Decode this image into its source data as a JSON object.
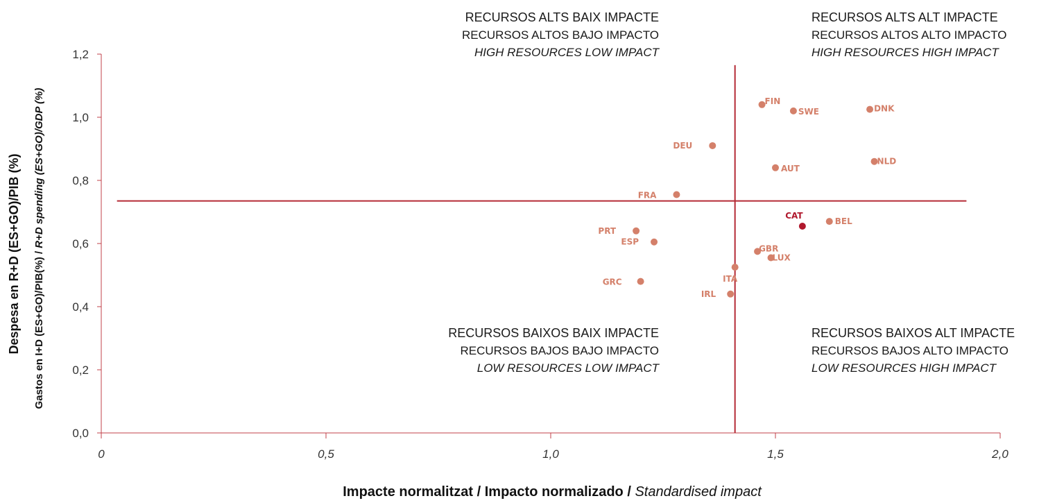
{
  "colors": {
    "axis": "#c0404a",
    "quadrant_line": "#b52a35",
    "point": "#d4806a",
    "highlight": "#b0182d",
    "text": "#1a1a1a"
  },
  "chart_data": {
    "type": "scatter",
    "xlabel_parts": [
      "Impacte normalitzat",
      " / ",
      "Impacto normalizado",
      " / ",
      "Standardised impact"
    ],
    "ylabel_line1": "Despesa en R+D (ES+GO)/PIB (%)",
    "ylabel_line2_parts": [
      "Gastos en I+D (ES+GO)/PIB(%)",
      " / ",
      "R+D spending (ES+GO)/GDP (%)"
    ],
    "xlim": [
      0,
      2.0
    ],
    "ylim": [
      0,
      1.2
    ],
    "x_ticks": [
      0,
      0.5,
      1.0,
      1.5,
      2.0
    ],
    "x_tick_labels": [
      "0",
      "0,5",
      "1,0",
      "1,5",
      "2,0"
    ],
    "y_ticks": [
      0,
      0.2,
      0.4,
      0.6,
      0.8,
      1.0,
      1.2
    ],
    "y_tick_labels": [
      "0,0",
      "0,2",
      "0,4",
      "0,6",
      "0,8",
      "1,0",
      "1,2"
    ],
    "grid": false,
    "reference_lines": {
      "x": 1.41,
      "y": 0.735
    },
    "points": [
      {
        "label": "FIN",
        "x": 1.47,
        "y": 1.04
      },
      {
        "label": "SWE",
        "x": 1.54,
        "y": 1.02
      },
      {
        "label": "DNK",
        "x": 1.71,
        "y": 1.025
      },
      {
        "label": "DEU",
        "x": 1.36,
        "y": 0.91
      },
      {
        "label": "NLD",
        "x": 1.72,
        "y": 0.86
      },
      {
        "label": "AUT",
        "x": 1.5,
        "y": 0.84
      },
      {
        "label": "FRA",
        "x": 1.28,
        "y": 0.755
      },
      {
        "label": "CAT",
        "x": 1.56,
        "y": 0.655,
        "highlight": true
      },
      {
        "label": "BEL",
        "x": 1.62,
        "y": 0.67
      },
      {
        "label": "PRT",
        "x": 1.19,
        "y": 0.64
      },
      {
        "label": "ESP",
        "x": 1.23,
        "y": 0.605
      },
      {
        "label": "GBR",
        "x": 1.46,
        "y": 0.575
      },
      {
        "label": "LUX",
        "x": 1.49,
        "y": 0.555
      },
      {
        "label": "ITA",
        "x": 1.41,
        "y": 0.525
      },
      {
        "label": "GRC",
        "x": 1.2,
        "y": 0.48
      },
      {
        "label": "IRL",
        "x": 1.4,
        "y": 0.44
      }
    ],
    "quadrants": [
      {
        "position": "top-left",
        "lines": [
          "RECURSOS ALTS BAIX IMPACTE",
          "RECURSOS ALTOS BAJO IMPACTO",
          "HIGH RESOURCES LOW IMPACT"
        ]
      },
      {
        "position": "top-right",
        "lines": [
          "RECURSOS ALTS ALT IMPACTE",
          "RECURSOS ALTOS ALTO IMPACTO",
          "HIGH RESOURCES HIGH IMPACT"
        ]
      },
      {
        "position": "bottom-left",
        "lines": [
          "RECURSOS BAIXOS BAIX IMPACTE",
          "RECURSOS BAJOS BAJO IMPACTO",
          "LOW RESOURCES LOW IMPACT"
        ]
      },
      {
        "position": "bottom-right",
        "lines": [
          "RECURSOS BAIXOS ALT IMPACTE",
          "RECURSOS BAJOS ALTO IMPACTO",
          "LOW RESOURCES HIGH IMPACT"
        ]
      }
    ]
  }
}
